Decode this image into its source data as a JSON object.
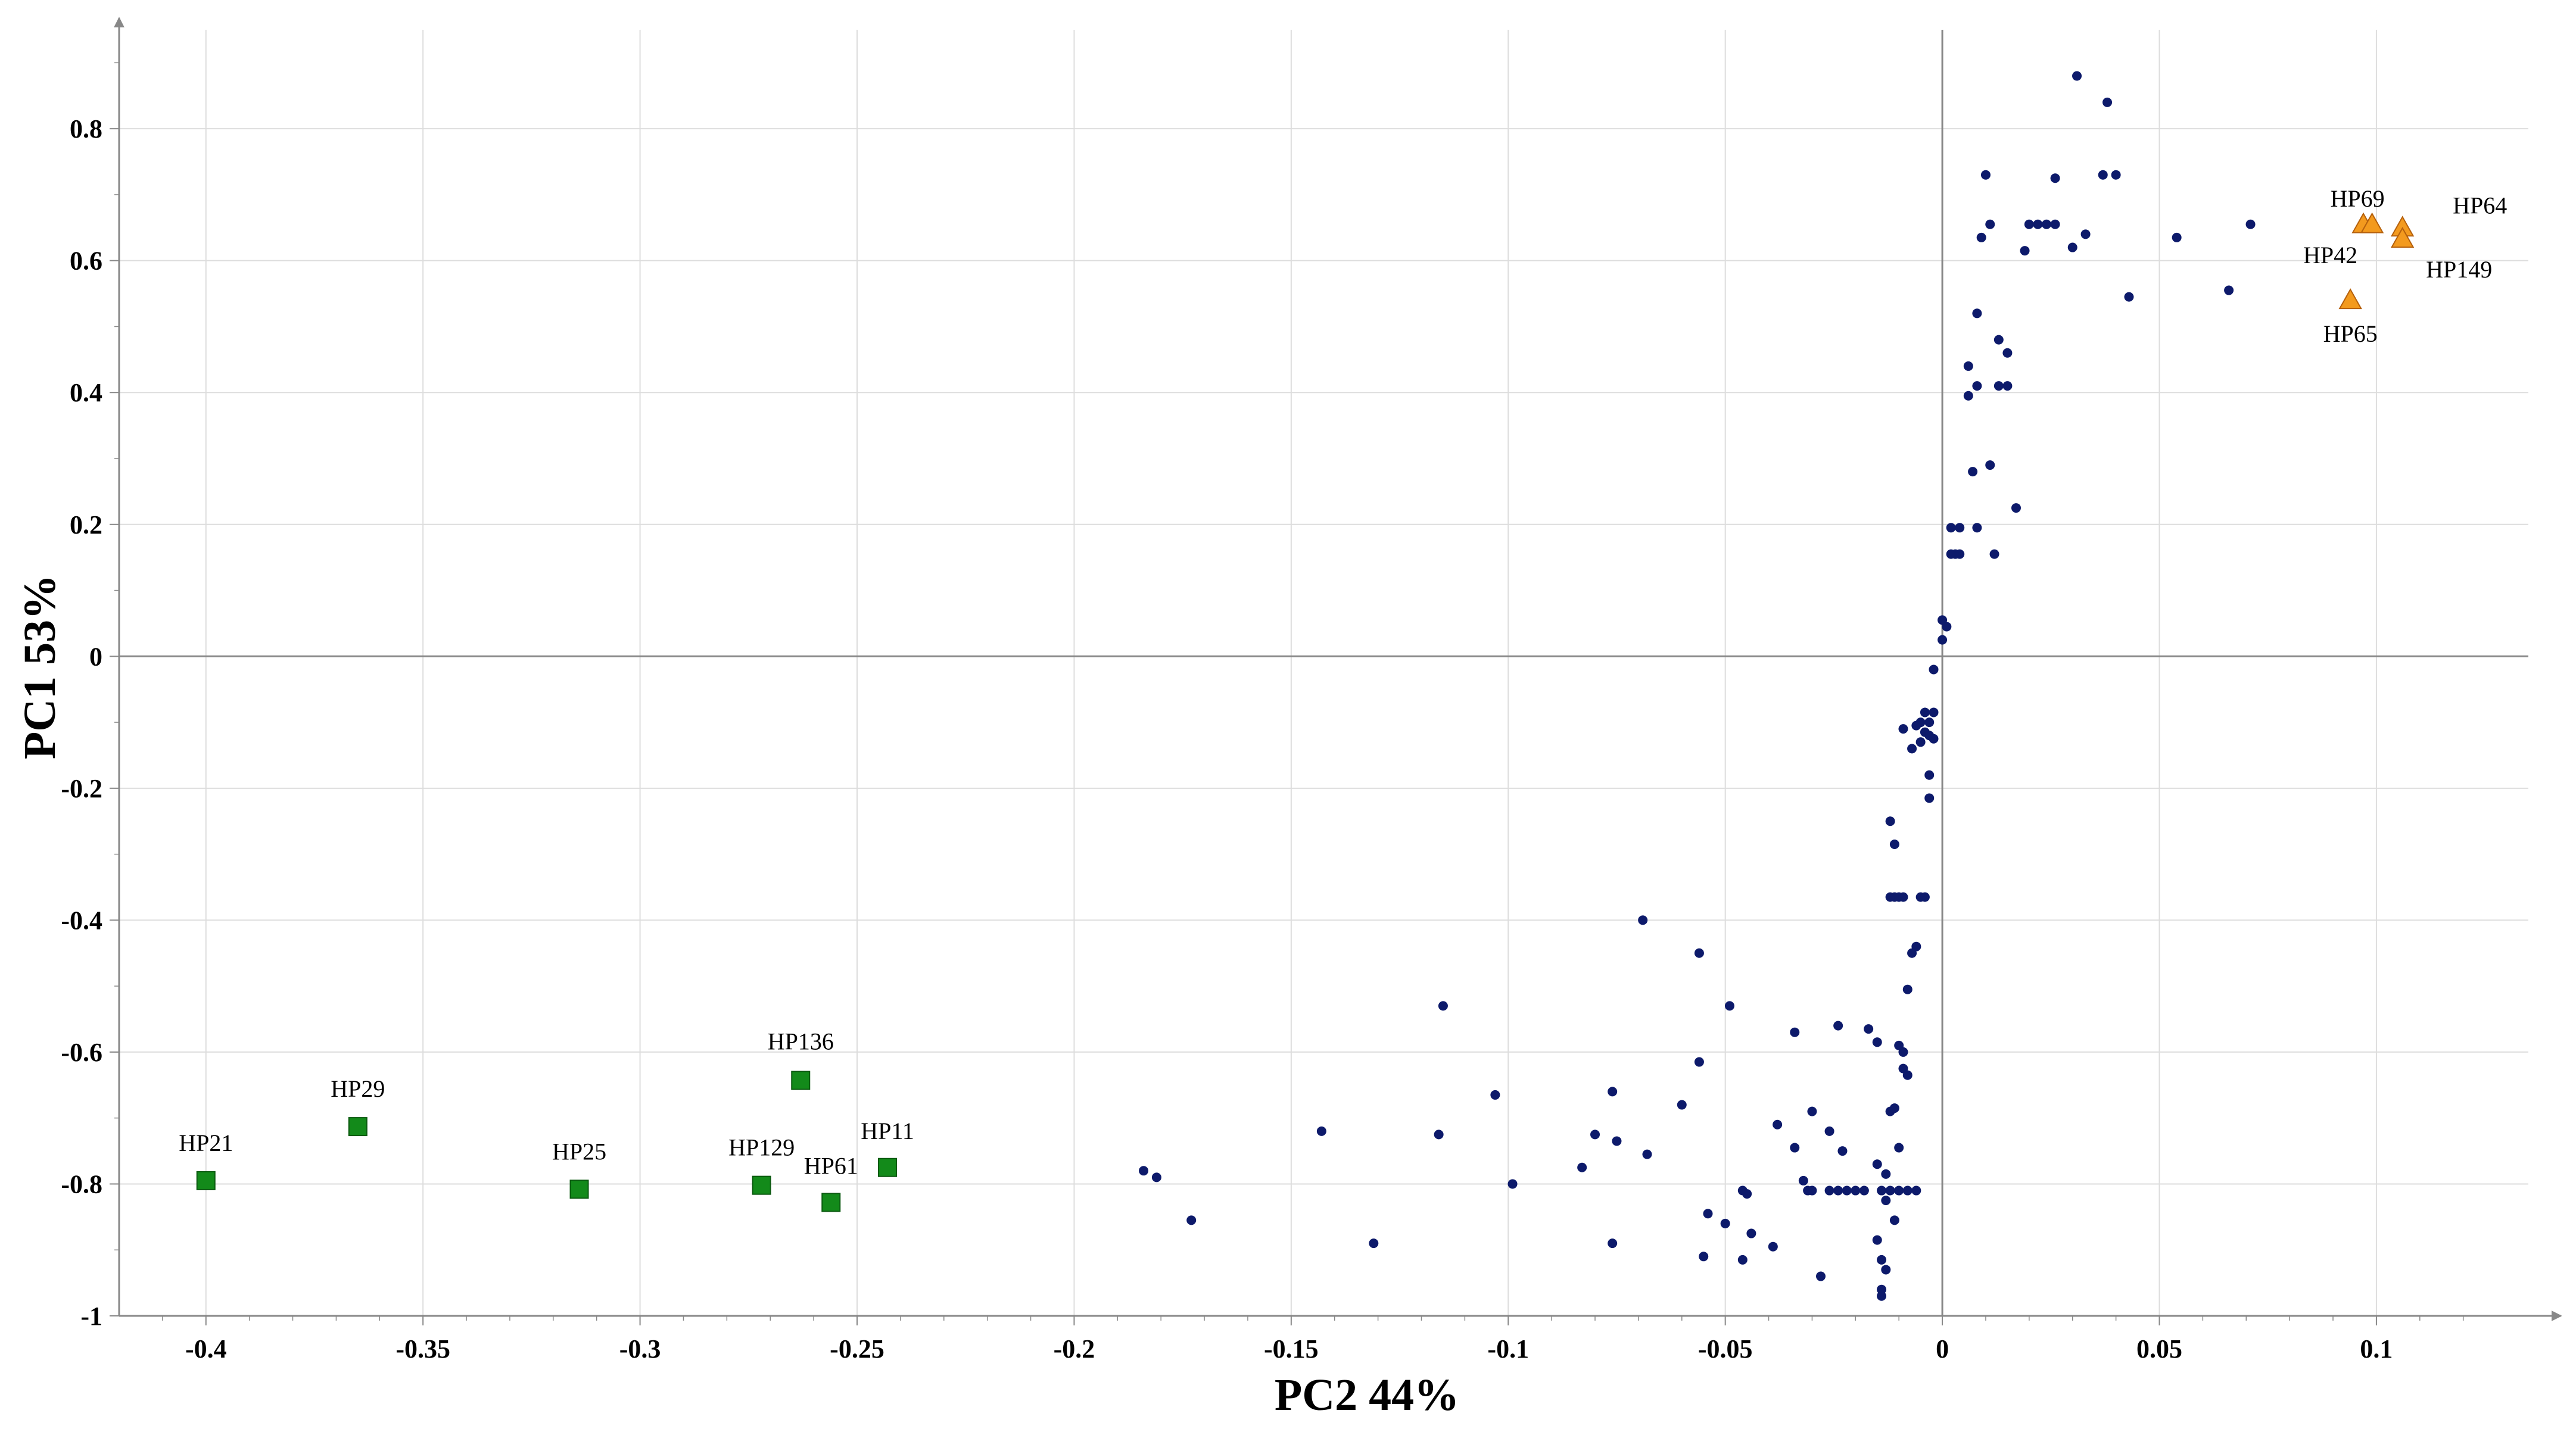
{
  "chart_data": {
    "type": "scatter",
    "xlabel": "PC2 44%",
    "ylabel": "PC1 53%",
    "xlim": [
      -0.42,
      0.135
    ],
    "ylim": [
      -1.0,
      0.95
    ],
    "x_ticks": [
      -0.4,
      -0.35,
      -0.3,
      -0.25,
      -0.2,
      -0.15,
      -0.1,
      -0.05,
      0,
      0.05,
      0.1
    ],
    "y_ticks": [
      -1,
      -0.8,
      -0.6,
      -0.4,
      -0.2,
      0,
      0.2,
      0.4,
      0.6,
      0.8
    ],
    "x_tick_labels": [
      "-0.4",
      "-0.35",
      "-0.3",
      "-0.25",
      "-0.2",
      "-0.15",
      "-0.1",
      "-0.05",
      "0",
      "0.05",
      "0.1"
    ],
    "y_tick_labels": [
      "-1",
      "-0.8",
      "-0.6",
      "-0.4",
      "-0.2",
      "0",
      "0.2",
      "0.4",
      "0.6",
      "0.8"
    ],
    "grid": true,
    "colors": {
      "dots": "#0d1a6b",
      "squares": "#138a1a",
      "triangles": "#f39a1e",
      "triangle_stroke": "#b5600c",
      "grid": "#dddddd",
      "axis": "#888888"
    },
    "series": [
      {
        "marker": "square",
        "points": [
          {
            "label": "HP21",
            "x": -0.4,
            "y": -0.795
          },
          {
            "label": "HP29",
            "x": -0.365,
            "y": -0.713
          },
          {
            "label": "HP25",
            "x": -0.314,
            "y": -0.808
          },
          {
            "label": "HP136",
            "x": -0.263,
            "y": -0.643
          },
          {
            "label": "HP129",
            "x": -0.272,
            "y": -0.802
          },
          {
            "label": "HP61",
            "x": -0.256,
            "y": -0.828
          },
          {
            "label": "HP11",
            "x": -0.243,
            "y": -0.775
          }
        ]
      },
      {
        "marker": "triangle",
        "points": [
          {
            "label": "HP69",
            "x": 0.097,
            "y": 0.655
          },
          {
            "label": "HP42",
            "x": 0.099,
            "y": 0.655
          },
          {
            "label": "HP64",
            "x": 0.106,
            "y": 0.65
          },
          {
            "label": "HP149",
            "x": 0.106,
            "y": 0.633
          },
          {
            "label": "HP65",
            "x": 0.094,
            "y": 0.54
          }
        ]
      },
      {
        "marker": "dot",
        "points": [
          {
            "x": 0.031,
            "y": 0.88
          },
          {
            "x": 0.038,
            "y": 0.84
          },
          {
            "x": 0.01,
            "y": 0.73
          },
          {
            "x": 0.026,
            "y": 0.725
          },
          {
            "x": 0.037,
            "y": 0.73
          },
          {
            "x": 0.04,
            "y": 0.73
          },
          {
            "x": 0.011,
            "y": 0.655
          },
          {
            "x": 0.009,
            "y": 0.635
          },
          {
            "x": 0.02,
            "y": 0.655
          },
          {
            "x": 0.022,
            "y": 0.655
          },
          {
            "x": 0.024,
            "y": 0.655
          },
          {
            "x": 0.026,
            "y": 0.655
          },
          {
            "x": 0.019,
            "y": 0.615
          },
          {
            "x": 0.033,
            "y": 0.64
          },
          {
            "x": 0.03,
            "y": 0.62
          },
          {
            "x": 0.054,
            "y": 0.635
          },
          {
            "x": 0.071,
            "y": 0.655
          },
          {
            "x": 0.066,
            "y": 0.555
          },
          {
            "x": 0.043,
            "y": 0.545
          },
          {
            "x": 0.008,
            "y": 0.52
          },
          {
            "x": 0.013,
            "y": 0.48
          },
          {
            "x": 0.015,
            "y": 0.46
          },
          {
            "x": 0.006,
            "y": 0.44
          },
          {
            "x": 0.008,
            "y": 0.41
          },
          {
            "x": 0.006,
            "y": 0.395
          },
          {
            "x": 0.013,
            "y": 0.41
          },
          {
            "x": 0.015,
            "y": 0.41
          },
          {
            "x": 0.011,
            "y": 0.29
          },
          {
            "x": 0.007,
            "y": 0.28
          },
          {
            "x": 0.017,
            "y": 0.225
          },
          {
            "x": 0.002,
            "y": 0.195
          },
          {
            "x": 0.004,
            "y": 0.195
          },
          {
            "x": 0.008,
            "y": 0.195
          },
          {
            "x": 0.002,
            "y": 0.155
          },
          {
            "x": 0.003,
            "y": 0.155
          },
          {
            "x": 0.004,
            "y": 0.155
          },
          {
            "x": 0.012,
            "y": 0.155
          },
          {
            "x": 0.0,
            "y": 0.055
          },
          {
            "x": 0.001,
            "y": 0.045
          },
          {
            "x": 0.0,
            "y": 0.025
          },
          {
            "x": -0.002,
            "y": -0.02
          },
          {
            "x": -0.004,
            "y": -0.085
          },
          {
            "x": -0.002,
            "y": -0.085
          },
          {
            "x": -0.005,
            "y": -0.1
          },
          {
            "x": -0.003,
            "y": -0.1
          },
          {
            "x": -0.009,
            "y": -0.11
          },
          {
            "x": -0.006,
            "y": -0.105
          },
          {
            "x": -0.004,
            "y": -0.115
          },
          {
            "x": -0.003,
            "y": -0.12
          },
          {
            "x": -0.002,
            "y": -0.125
          },
          {
            "x": -0.005,
            "y": -0.13
          },
          {
            "x": -0.007,
            "y": -0.14
          },
          {
            "x": -0.003,
            "y": -0.18
          },
          {
            "x": -0.003,
            "y": -0.215
          },
          {
            "x": -0.012,
            "y": -0.25
          },
          {
            "x": -0.011,
            "y": -0.285
          },
          {
            "x": -0.012,
            "y": -0.365
          },
          {
            "x": -0.011,
            "y": -0.365
          },
          {
            "x": -0.01,
            "y": -0.365
          },
          {
            "x": -0.009,
            "y": -0.365
          },
          {
            "x": -0.005,
            "y": -0.365
          },
          {
            "x": -0.004,
            "y": -0.365
          },
          {
            "x": -0.069,
            "y": -0.4
          },
          {
            "x": -0.006,
            "y": -0.44
          },
          {
            "x": -0.007,
            "y": -0.45
          },
          {
            "x": -0.056,
            "y": -0.45
          },
          {
            "x": -0.008,
            "y": -0.505
          },
          {
            "x": -0.049,
            "y": -0.53
          },
          {
            "x": -0.115,
            "y": -0.53
          },
          {
            "x": -0.034,
            "y": -0.57
          },
          {
            "x": -0.024,
            "y": -0.56
          },
          {
            "x": -0.017,
            "y": -0.565
          },
          {
            "x": -0.015,
            "y": -0.585
          },
          {
            "x": -0.01,
            "y": -0.59
          },
          {
            "x": -0.009,
            "y": -0.6
          },
          {
            "x": -0.009,
            "y": -0.625
          },
          {
            "x": -0.008,
            "y": -0.635
          },
          {
            "x": -0.056,
            "y": -0.615
          },
          {
            "x": -0.103,
            "y": -0.665
          },
          {
            "x": -0.076,
            "y": -0.66
          },
          {
            "x": -0.06,
            "y": -0.68
          },
          {
            "x": -0.012,
            "y": -0.69
          },
          {
            "x": -0.011,
            "y": -0.685
          },
          {
            "x": -0.03,
            "y": -0.69
          },
          {
            "x": -0.038,
            "y": -0.71
          },
          {
            "x": -0.026,
            "y": -0.72
          },
          {
            "x": -0.143,
            "y": -0.72
          },
          {
            "x": -0.116,
            "y": -0.725
          },
          {
            "x": -0.08,
            "y": -0.725
          },
          {
            "x": -0.075,
            "y": -0.735
          },
          {
            "x": -0.034,
            "y": -0.745
          },
          {
            "x": -0.023,
            "y": -0.75
          },
          {
            "x": -0.01,
            "y": -0.745
          },
          {
            "x": -0.068,
            "y": -0.755
          },
          {
            "x": -0.083,
            "y": -0.775
          },
          {
            "x": -0.015,
            "y": -0.77
          },
          {
            "x": -0.184,
            "y": -0.78
          },
          {
            "x": -0.181,
            "y": -0.79
          },
          {
            "x": -0.099,
            "y": -0.8
          },
          {
            "x": -0.032,
            "y": -0.795
          },
          {
            "x": -0.013,
            "y": -0.785
          },
          {
            "x": -0.031,
            "y": -0.81
          },
          {
            "x": -0.03,
            "y": -0.81
          },
          {
            "x": -0.026,
            "y": -0.81
          },
          {
            "x": -0.024,
            "y": -0.81
          },
          {
            "x": -0.022,
            "y": -0.81
          },
          {
            "x": -0.02,
            "y": -0.81
          },
          {
            "x": -0.018,
            "y": -0.81
          },
          {
            "x": -0.014,
            "y": -0.81
          },
          {
            "x": -0.012,
            "y": -0.81
          },
          {
            "x": -0.01,
            "y": -0.81
          },
          {
            "x": -0.008,
            "y": -0.81
          },
          {
            "x": -0.006,
            "y": -0.81
          },
          {
            "x": -0.046,
            "y": -0.81
          },
          {
            "x": -0.045,
            "y": -0.815
          },
          {
            "x": -0.013,
            "y": -0.825
          },
          {
            "x": -0.054,
            "y": -0.845
          },
          {
            "x": -0.011,
            "y": -0.855
          },
          {
            "x": -0.05,
            "y": -0.86
          },
          {
            "x": -0.173,
            "y": -0.855
          },
          {
            "x": -0.044,
            "y": -0.875
          },
          {
            "x": -0.015,
            "y": -0.885
          },
          {
            "x": -0.131,
            "y": -0.89
          },
          {
            "x": -0.076,
            "y": -0.89
          },
          {
            "x": -0.039,
            "y": -0.895
          },
          {
            "x": -0.055,
            "y": -0.91
          },
          {
            "x": -0.046,
            "y": -0.915
          },
          {
            "x": -0.014,
            "y": -0.915
          },
          {
            "x": -0.013,
            "y": -0.93
          },
          {
            "x": -0.028,
            "y": -0.94
          },
          {
            "x": -0.014,
            "y": -0.96
          },
          {
            "x": -0.014,
            "y": -0.97
          }
        ]
      }
    ]
  }
}
